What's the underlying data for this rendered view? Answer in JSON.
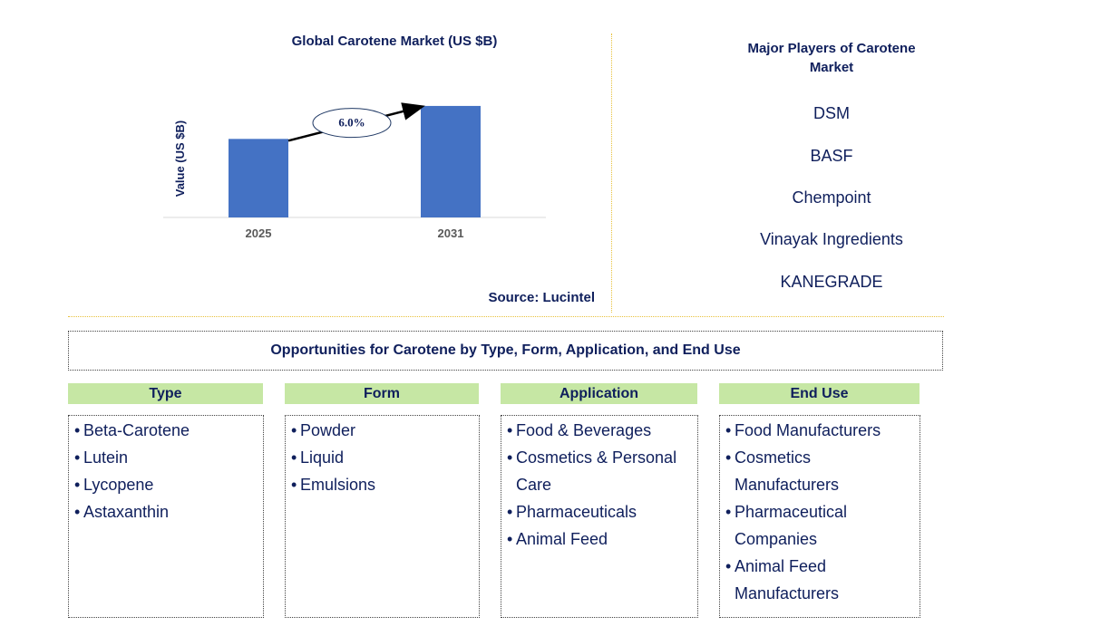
{
  "chart_data": {
    "type": "bar",
    "title": "Global Carotene Market (US $B)",
    "ylabel": "Value (US $B)",
    "categories": [
      "2025",
      "2031"
    ],
    "values": [
      1.0,
      1.42
    ],
    "ylim": [
      0,
      1.5
    ],
    "annotation": "6.0%",
    "bar_color": "#4472c4",
    "grid": false,
    "legend": "none"
  },
  "source": "Source: Lucintel",
  "players": {
    "title": "Major Players of Carotene Market",
    "items": [
      "DSM",
      "BASF",
      "Chempoint",
      "Vinayak Ingredients",
      "KANEGRADE"
    ]
  },
  "opportunities_title": "Opportunities for Carotene by Type, Form, Application, and End Use",
  "segments": [
    {
      "title": "Type",
      "items": [
        "Beta-Carotene",
        "Lutein",
        "Lycopene",
        "Astaxanthin"
      ]
    },
    {
      "title": "Form",
      "items": [
        "Powder",
        "Liquid",
        "Emulsions"
      ]
    },
    {
      "title": "Application",
      "items": [
        "Food & Beverages",
        "Cosmetics & Personal Care",
        "Pharmaceuticals",
        "Animal Feed"
      ]
    },
    {
      "title": "End Use",
      "items": [
        "Food Manufacturers",
        "Cosmetics Manufacturers",
        "Pharmaceutical Companies",
        "Animal Feed Manufacturers"
      ]
    }
  ],
  "colors": {
    "header_green": "#c6e7a4",
    "text_navy": "#0f1f5c",
    "divider_gold": "#e8c13a"
  }
}
